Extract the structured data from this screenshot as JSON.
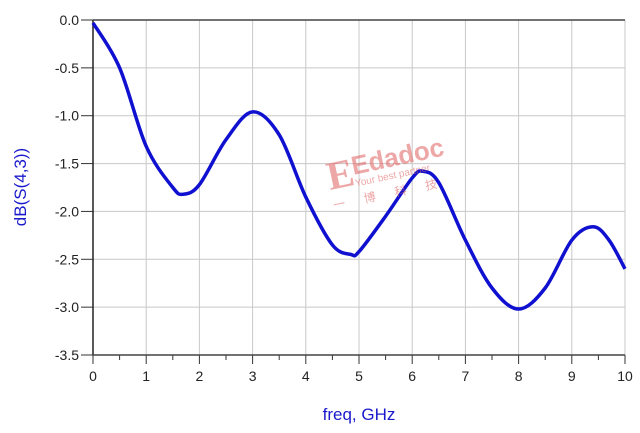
{
  "chart_data": {
    "type": "line",
    "xlabel": "freq, GHz",
    "ylabel": "dB(S(4,3))",
    "xlim": [
      0,
      10
    ],
    "ylim": [
      -3.5,
      0.0
    ],
    "grid": true,
    "xticks": [
      "0",
      "1",
      "2",
      "3",
      "4",
      "5",
      "6",
      "7",
      "8",
      "9",
      "10"
    ],
    "yticks": [
      "0.0",
      "-0.5",
      "-1.0",
      "-1.5",
      "-2.0",
      "-2.5",
      "-3.0",
      "-3.5"
    ],
    "series": [
      {
        "color": "#1010d0",
        "x": [
          0,
          0.5,
          1,
          1.5,
          1.7,
          2,
          2.5,
          3,
          3.5,
          4,
          4.5,
          4.85,
          5,
          5.5,
          6,
          6.2,
          6.5,
          7,
          7.5,
          8,
          8.5,
          9,
          9.4,
          9.7,
          10
        ],
        "y": [
          -0.03,
          -0.5,
          -1.32,
          -1.75,
          -1.82,
          -1.72,
          -1.25,
          -0.96,
          -1.2,
          -1.85,
          -2.35,
          -2.45,
          -2.42,
          -2.05,
          -1.65,
          -1.58,
          -1.7,
          -2.3,
          -2.8,
          -3.02,
          -2.8,
          -2.3,
          -2.16,
          -2.3,
          -2.6
        ]
      }
    ]
  },
  "watermark": {
    "text": "Edadoc",
    "tagline": "Your best partner",
    "sub": "一 博 科 技"
  }
}
